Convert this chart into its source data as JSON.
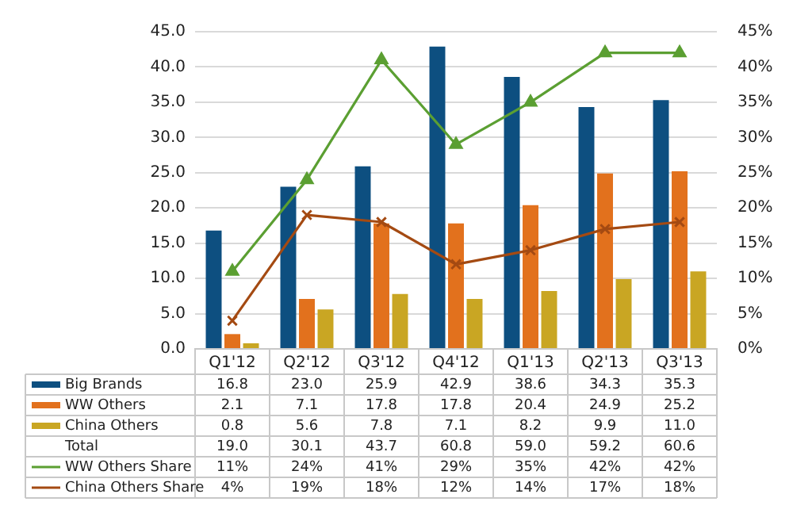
{
  "chart_data": {
    "type": "bar",
    "categories": [
      "Q1'12",
      "Q2'12",
      "Q3'12",
      "Q4'12",
      "Q1'13",
      "Q2'13",
      "Q3'13"
    ],
    "series": [
      {
        "name": "Big Brands",
        "color": "#0d4f80",
        "values": [
          16.8,
          23.0,
          25.9,
          42.9,
          38.6,
          34.3,
          35.3
        ],
        "value_labels": [
          "16.8",
          "23.0",
          "25.9",
          "42.9",
          "38.6",
          "34.3",
          "35.3"
        ]
      },
      {
        "name": "WW Others",
        "color": "#e2711d",
        "values": [
          2.1,
          7.1,
          17.8,
          17.8,
          20.4,
          24.9,
          25.2
        ],
        "value_labels": [
          "2.1",
          "7.1",
          "17.8",
          "17.8",
          "20.4",
          "24.9",
          "25.2"
        ]
      },
      {
        "name": "China Others",
        "color": "#c9a623",
        "values": [
          0.8,
          5.6,
          7.8,
          7.1,
          8.2,
          9.9,
          11.0
        ],
        "value_labels": [
          "0.8",
          "5.6",
          "7.8",
          "7.1",
          "8.2",
          "9.9",
          "11.0"
        ]
      },
      {
        "name": "WW Others Share",
        "type": "line",
        "axis": "y2",
        "marker": "triangle",
        "color": "#5b9f32",
        "values": [
          11,
          24,
          41,
          29,
          35,
          42,
          42
        ],
        "value_labels": [
          "11%",
          "24%",
          "41%",
          "29%",
          "35%",
          "42%",
          "42%"
        ]
      },
      {
        "name": "China Others Share",
        "type": "line",
        "axis": "y2",
        "marker": "cross",
        "color": "#a44a12",
        "values": [
          4,
          19,
          18,
          12,
          14,
          17,
          18
        ],
        "value_labels": [
          "4%",
          "19%",
          "18%",
          "12%",
          "14%",
          "17%",
          "18%"
        ]
      }
    ],
    "annotations": [
      "Total",
      "19.0",
      "30.1",
      "43.7",
      "60.8",
      "59.0",
      "59.2",
      "60.6"
    ],
    "ylim": [
      0,
      45
    ],
    "yticks": [
      {
        "value": 0,
        "label": "0.0"
      },
      {
        "value": 5,
        "label": "5.0"
      },
      {
        "value": 10,
        "label": "10.0"
      },
      {
        "value": 15,
        "label": "15.0"
      },
      {
        "value": 20,
        "label": "20.0"
      },
      {
        "value": 25,
        "label": "25.0"
      },
      {
        "value": 30,
        "label": "30.0"
      },
      {
        "value": 35,
        "label": "35.0"
      },
      {
        "value": 40,
        "label": "40.0"
      },
      {
        "value": 45,
        "label": "45.0"
      }
    ],
    "y2lim": [
      0,
      45
    ],
    "y2ticks": [
      {
        "value": 0,
        "label": "0%"
      },
      {
        "value": 5,
        "label": "5%"
      },
      {
        "value": 10,
        "label": "10%"
      },
      {
        "value": 15,
        "label": "15%"
      },
      {
        "value": 20,
        "label": "20%"
      },
      {
        "value": 25,
        "label": "25%"
      },
      {
        "value": 30,
        "label": "30%"
      },
      {
        "value": 35,
        "label": "35%"
      },
      {
        "value": 40,
        "label": "40%"
      },
      {
        "value": 45,
        "label": "45%"
      }
    ],
    "grid": "y",
    "legend": "bottom"
  }
}
